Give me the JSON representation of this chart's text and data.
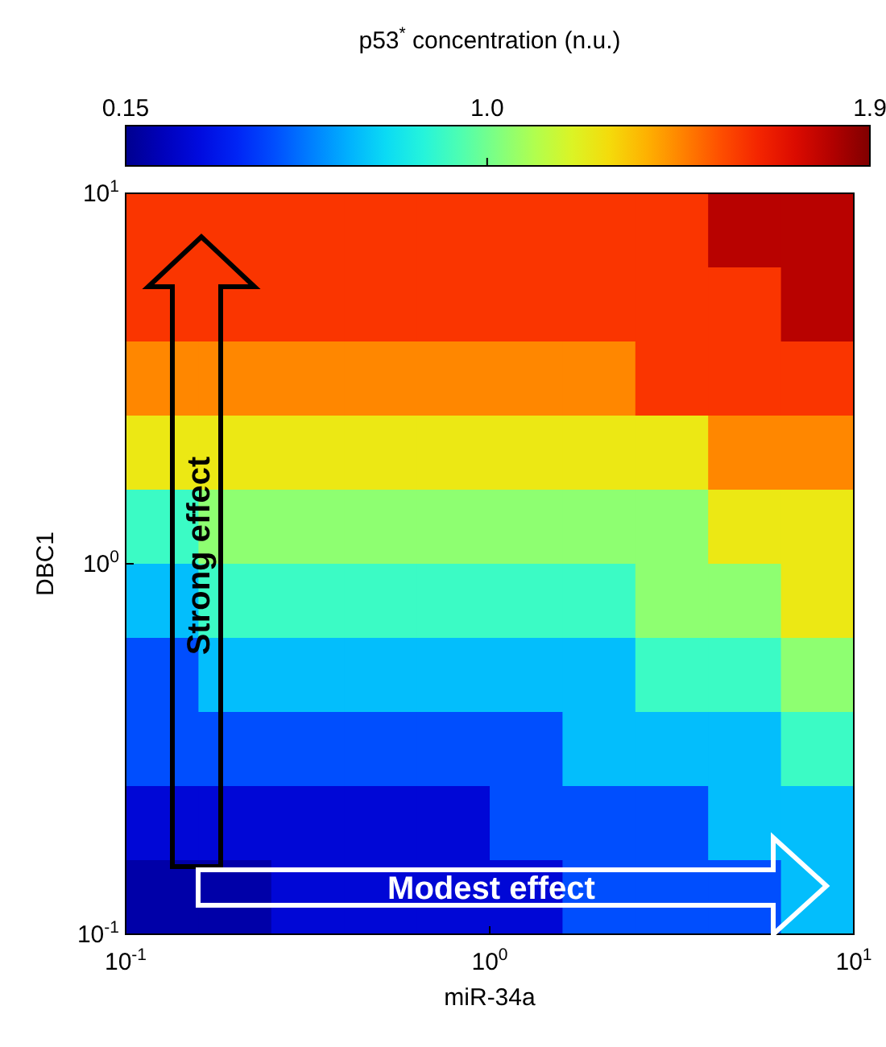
{
  "chart_data": {
    "type": "heatmap",
    "xlabel": "miR-34a",
    "ylabel": "DBC1",
    "clabel": "p53$^{*}$ concentration (n.u.)",
    "log": "xy",
    "xlim": [
      0.1,
      10
    ],
    "ylim": [
      0.1,
      10
    ],
    "xticks": [
      {
        "value": 0.1,
        "label": "10$^{-1}$"
      },
      {
        "value": 1,
        "label": "10$^{0}$"
      },
      {
        "value": 10,
        "label": "10$^{1}$"
      }
    ],
    "yticks": [
      {
        "value": 0.1,
        "label": "10$^{-1}$"
      },
      {
        "value": 1,
        "label": "10$^{0}$"
      },
      {
        "value": 10,
        "label": "10$^{1}$"
      }
    ],
    "clim": [
      0.15,
      1.9
    ],
    "cticks": [
      0.15,
      {
        "value": 1,
        "label": "1.0"
      },
      1.9
    ],
    "cells": [
      [
        1.6,
        1.6,
        1.6,
        1.6,
        1.6,
        1.6,
        1.6,
        1.6,
        1.8,
        1.8
      ],
      [
        1.6,
        1.6,
        1.6,
        1.6,
        1.6,
        1.6,
        1.6,
        1.6,
        1.6,
        1.8
      ],
      [
        1.45,
        1.45,
        1.45,
        1.45,
        1.45,
        1.45,
        1.45,
        1.6,
        1.6,
        1.6
      ],
      [
        1.25,
        1.25,
        1.25,
        1.25,
        1.25,
        1.25,
        1.25,
        1.25,
        1.45,
        1.45
      ],
      [
        0.9,
        1.05,
        1.05,
        1.05,
        1.05,
        1.05,
        1.05,
        1.05,
        1.25,
        1.25
      ],
      [
        0.7,
        0.9,
        0.9,
        0.9,
        0.9,
        0.9,
        0.9,
        1.05,
        1.05,
        1.25
      ],
      [
        0.5,
        0.7,
        0.7,
        0.7,
        0.7,
        0.7,
        0.7,
        0.9,
        0.9,
        1.05
      ],
      [
        0.5,
        0.5,
        0.5,
        0.5,
        0.5,
        0.5,
        0.7,
        0.7,
        0.7,
        0.9
      ],
      [
        0.3,
        0.3,
        0.3,
        0.3,
        0.3,
        0.5,
        0.5,
        0.5,
        0.7,
        0.7
      ],
      [
        0.2,
        0.2,
        0.3,
        0.3,
        0.3,
        0.3,
        0.5,
        0.5,
        0.5,
        0.7
      ]
    ],
    "annotations": [
      "Strong effect",
      "Modest effect"
    ]
  }
}
